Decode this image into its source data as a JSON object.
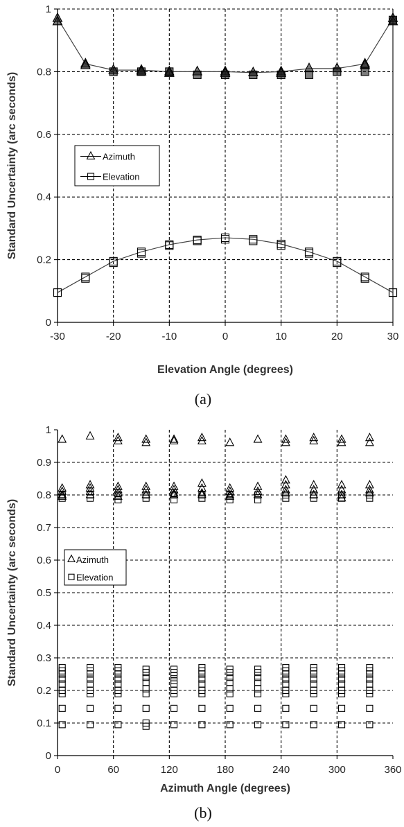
{
  "chart_data": [
    {
      "type": "line",
      "caption": "(a)",
      "xlabel": "Elevation Angle (degrees)",
      "ylabel": "Standard Uncertainty (arc seconds)",
      "xlim": [
        -30,
        30
      ],
      "ylim": [
        0,
        1
      ],
      "xticks": [
        "-30",
        "-20",
        "-10",
        "0",
        "10",
        "20",
        "30"
      ],
      "yticks": [
        "0",
        "0.2",
        "0.4",
        "0.6",
        "0.8",
        "1"
      ],
      "grid": true,
      "legend_position": "left-middle",
      "x": [
        -30,
        -25,
        -20,
        -15,
        -10,
        -5,
        0,
        5,
        10,
        15,
        20,
        25,
        30
      ],
      "series": [
        {
          "name": "Azimuth",
          "marker": "triangle",
          "values": [
            0.97,
            0.825,
            0.805,
            0.805,
            0.8,
            0.8,
            0.8,
            0.797,
            0.8,
            0.81,
            0.81,
            0.825,
            0.97
          ]
        },
        {
          "name": "Elevation",
          "marker": "square",
          "values": [
            0.095,
            0.145,
            0.195,
            0.225,
            0.248,
            0.263,
            0.27,
            0.265,
            0.25,
            0.225,
            0.195,
            0.145,
            0.095
          ]
        }
      ],
      "extra_points": [
        {
          "series": "Azimuth",
          "points": [
            [
              -30,
              0.96
            ],
            [
              -25,
              0.82
            ],
            [
              -15,
              0.8
            ],
            [
              -10,
              0.795
            ],
            [
              0,
              0.795
            ],
            [
              10,
              0.795
            ],
            [
              25,
              0.82
            ],
            [
              30,
              0.96
            ]
          ]
        },
        {
          "series": "Elevation",
          "points": [
            [
              -30,
              0.095
            ],
            [
              -25,
              0.14
            ],
            [
              -20,
              0.19
            ],
            [
              -15,
              0.22
            ],
            [
              -10,
              0.245
            ],
            [
              -5,
              0.26
            ],
            [
              0,
              0.265
            ],
            [
              5,
              0.26
            ],
            [
              10,
              0.245
            ],
            [
              15,
              0.22
            ],
            [
              20,
              0.19
            ],
            [
              25,
              0.14
            ],
            [
              30,
              0.095
            ]
          ]
        }
      ],
      "extra_squares_near_top": [
        [
          -20,
          0.8
        ],
        [
          -15,
          0.8
        ],
        [
          -10,
          0.8
        ],
        [
          -5,
          0.79
        ],
        [
          0,
          0.79
        ],
        [
          5,
          0.79
        ],
        [
          10,
          0.79
        ],
        [
          15,
          0.79
        ],
        [
          20,
          0.8
        ],
        [
          25,
          0.8
        ],
        [
          30,
          0.965
        ]
      ]
    },
    {
      "type": "scatter",
      "caption": "(b)",
      "xlabel": "Azimuth Angle (degrees)",
      "ylabel": "Standard Uncertainty (arc seconds)",
      "xlim": [
        0,
        360
      ],
      "ylim": [
        0,
        1
      ],
      "xticks": [
        "0",
        "60",
        "120",
        "180",
        "240",
        "300",
        "360"
      ],
      "yticks": [
        "0",
        "0.1",
        "0.2",
        "0.3",
        "0.4",
        "0.5",
        "0.6",
        "0.7",
        "0.8",
        "0.9",
        "1"
      ],
      "grid": true,
      "legend_position": "left-middle",
      "azimuth_columns": [
        5,
        35,
        65,
        95,
        125,
        155,
        185,
        215,
        245,
        275,
        305,
        335
      ],
      "series": [
        {
          "name": "Azimuth",
          "marker": "triangle",
          "points_by_column": [
            [
              0.97,
              0.82,
              0.81,
              0.8,
              0.795
            ],
            [
              0.98,
              0.83,
              0.82,
              0.81,
              0.8
            ],
            [
              0.975,
              0.965,
              0.825,
              0.815,
              0.805,
              0.795
            ],
            [
              0.97,
              0.96,
              0.825,
              0.815,
              0.8
            ],
            [
              0.97,
              0.965,
              0.825,
              0.815,
              0.805,
              0.8
            ],
            [
              0.975,
              0.965,
              0.835,
              0.82,
              0.805,
              0.8
            ],
            [
              0.96,
              0.82,
              0.81,
              0.8,
              0.795
            ],
            [
              0.97,
              0.825,
              0.81,
              0.8
            ],
            [
              0.97,
              0.96,
              0.845,
              0.83,
              0.815,
              0.805
            ],
            [
              0.975,
              0.965,
              0.83,
              0.815,
              0.8
            ],
            [
              0.97,
              0.96,
              0.83,
              0.815,
              0.8,
              0.79
            ],
            [
              0.975,
              0.96,
              0.83,
              0.815,
              0.805
            ]
          ]
        },
        {
          "name": "Elevation",
          "marker": "square",
          "points_by_column": [
            [
              0.8,
              0.79,
              0.27,
              0.26,
              0.25,
              0.235,
              0.22,
              0.2,
              0.19,
              0.145,
              0.095
            ],
            [
              0.8,
              0.79,
              0.27,
              0.26,
              0.25,
              0.235,
              0.22,
              0.2,
              0.19,
              0.145,
              0.095
            ],
            [
              0.8,
              0.785,
              0.27,
              0.26,
              0.25,
              0.235,
              0.22,
              0.2,
              0.19,
              0.145,
              0.095
            ],
            [
              0.8,
              0.79,
              0.265,
              0.255,
              0.24,
              0.225,
              0.205,
              0.19,
              0.145,
              0.1,
              0.09
            ],
            [
              0.8,
              0.785,
              0.265,
              0.255,
              0.245,
              0.23,
              0.22,
              0.2,
              0.19,
              0.145,
              0.095
            ],
            [
              0.8,
              0.79,
              0.27,
              0.26,
              0.25,
              0.235,
              0.22,
              0.2,
              0.19,
              0.145,
              0.095
            ],
            [
              0.8,
              0.785,
              0.265,
              0.255,
              0.24,
              0.225,
              0.205,
              0.19,
              0.145,
              0.095
            ],
            [
              0.8,
              0.785,
              0.265,
              0.255,
              0.24,
              0.225,
              0.205,
              0.19,
              0.145,
              0.095
            ],
            [
              0.8,
              0.79,
              0.27,
              0.26,
              0.25,
              0.235,
              0.22,
              0.2,
              0.19,
              0.145,
              0.095
            ],
            [
              0.8,
              0.79,
              0.27,
              0.26,
              0.25,
              0.235,
              0.22,
              0.2,
              0.19,
              0.145,
              0.095
            ],
            [
              0.8,
              0.79,
              0.27,
              0.26,
              0.25,
              0.235,
              0.22,
              0.2,
              0.19,
              0.145,
              0.095
            ],
            [
              0.8,
              0.79,
              0.27,
              0.26,
              0.25,
              0.235,
              0.22,
              0.2,
              0.19,
              0.145,
              0.095
            ]
          ]
        }
      ]
    }
  ]
}
